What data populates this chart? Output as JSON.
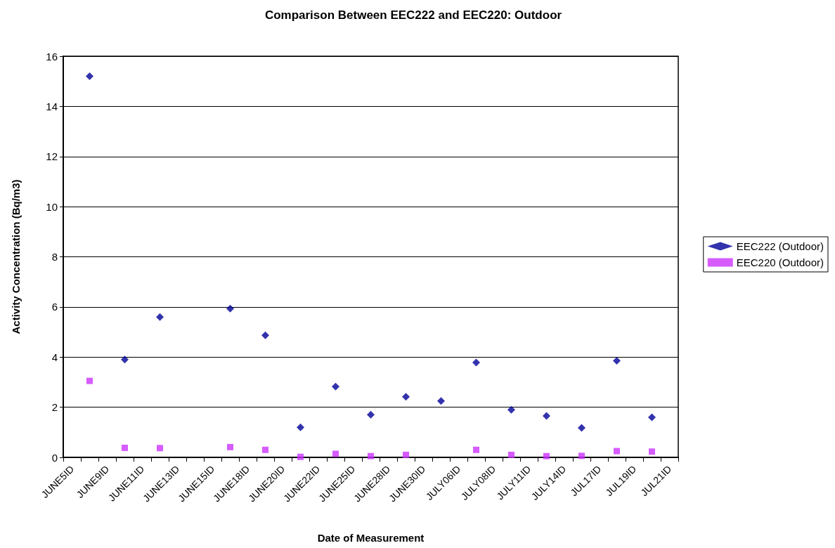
{
  "chart_data": {
    "type": "scatter",
    "title": "Comparison Between EEC222 and EEC220: Outdoor",
    "xlabel": "Date of Measurement",
    "ylabel": "Activity Concentration (Bq/m3)",
    "categories": [
      "JUNE5ID",
      null,
      "JUNE9ID",
      null,
      "JUNE11ID",
      null,
      "JUNE13ID",
      null,
      "JUNE15ID",
      null,
      "JUNE18ID",
      null,
      "JUNE20ID",
      null,
      "JUNE22ID",
      null,
      "JUNE25ID",
      null,
      "JUNE28ID",
      null,
      "JUNE30ID",
      null,
      "JULY06ID",
      null,
      "JULY08ID",
      null,
      "JULY11ID",
      null,
      "JULY14ID",
      null,
      "JUL17ID",
      null,
      "JUL19ID",
      null,
      "JUL21ID"
    ],
    "series": [
      {
        "name": "EEC222 (Outdoor)",
        "color": "#000099",
        "marker": "diamond",
        "values": [
          null,
          15.2,
          null,
          3.9,
          null,
          5.6,
          null,
          null,
          null,
          5.93,
          null,
          4.87,
          null,
          1.2,
          null,
          2.82,
          null,
          1.7,
          null,
          2.42,
          null,
          2.25,
          null,
          3.78,
          null,
          1.9,
          null,
          1.65,
          null,
          1.18,
          null,
          3.85,
          null,
          1.6,
          null
        ]
      },
      {
        "name": "EEC220 (Outdoor)",
        "color": "#cc33ff",
        "marker": "square",
        "values": [
          null,
          3.05,
          null,
          0.38,
          null,
          0.37,
          null,
          null,
          null,
          0.41,
          null,
          0.3,
          null,
          0.02,
          null,
          0.14,
          null,
          0.05,
          null,
          0.1,
          null,
          null,
          null,
          0.3,
          null,
          0.1,
          null,
          0.05,
          null,
          0.06,
          null,
          0.25,
          null,
          0.23,
          null
        ]
      }
    ],
    "ylim": [
      0,
      16
    ],
    "yticks": [
      0,
      2,
      4,
      6,
      8,
      10,
      12,
      14,
      16
    ],
    "grid": "y",
    "legend": "right"
  }
}
